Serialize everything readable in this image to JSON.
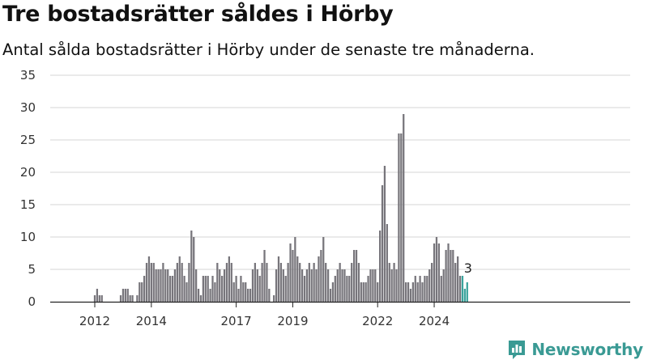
{
  "title": "Tre bostadsrätter såldes i Hörby",
  "subtitle": "Antal sålda bostadsrätter i Hörby under de senaste tre månaderna.",
  "brand": {
    "name": "Newsworthy",
    "icon": "newsworthy-logo-icon",
    "color": "#3a9a94"
  },
  "colors": {
    "bar": "#77757b",
    "highlight": "#3aa39c",
    "grid": "#d6d6d6"
  },
  "chart_data": {
    "type": "bar",
    "xlabel": "",
    "ylabel": "",
    "ylim": [
      0,
      35
    ],
    "y_ticks": [
      0,
      5,
      10,
      15,
      20,
      25,
      30,
      35
    ],
    "x_tick_labels": [
      "2012",
      "2014",
      "2017",
      "2019",
      "2022",
      "2024"
    ],
    "x_tick_years": [
      2012,
      2014,
      2017,
      2019,
      2022,
      2024
    ],
    "grid": true,
    "start_month": "2011-01",
    "values": [
      0,
      0,
      0,
      0,
      0,
      0,
      0,
      0,
      0,
      0,
      0,
      0,
      0,
      0,
      0,
      0,
      0,
      0,
      1,
      2,
      1,
      1,
      0,
      0,
      0,
      0,
      0,
      0,
      0,
      1,
      2,
      2,
      2,
      1,
      1,
      0,
      1,
      3,
      3,
      4,
      6,
      7,
      6,
      6,
      5,
      5,
      5,
      6,
      5,
      5,
      4,
      4,
      5,
      6,
      7,
      6,
      4,
      3,
      6,
      11,
      10,
      5,
      2,
      1,
      4,
      4,
      4,
      2,
      4,
      3,
      6,
      5,
      4,
      5,
      6,
      7,
      6,
      3,
      4,
      2,
      4,
      3,
      3,
      2,
      2,
      5,
      6,
      5,
      4,
      6,
      8,
      6,
      2,
      0,
      1,
      5,
      7,
      6,
      5,
      4,
      6,
      9,
      8,
      10,
      7,
      6,
      5,
      4,
      5,
      6,
      5,
      6,
      5,
      7,
      8,
      10,
      6,
      5,
      2,
      3,
      4,
      5,
      6,
      5,
      5,
      4,
      4,
      6,
      8,
      8,
      6,
      3,
      3,
      3,
      4,
      5,
      5,
      5,
      3,
      11,
      18,
      21,
      12,
      6,
      5,
      6,
      5,
      26,
      26,
      29,
      3,
      3,
      2,
      3,
      4,
      3,
      4,
      3,
      4,
      4,
      5,
      6,
      9,
      10,
      9,
      4,
      5,
      8,
      9,
      8,
      8,
      6,
      7,
      4,
      4,
      2,
      3
    ],
    "highlight_last": 3,
    "annotation": {
      "text": "3",
      "value": 3
    }
  }
}
